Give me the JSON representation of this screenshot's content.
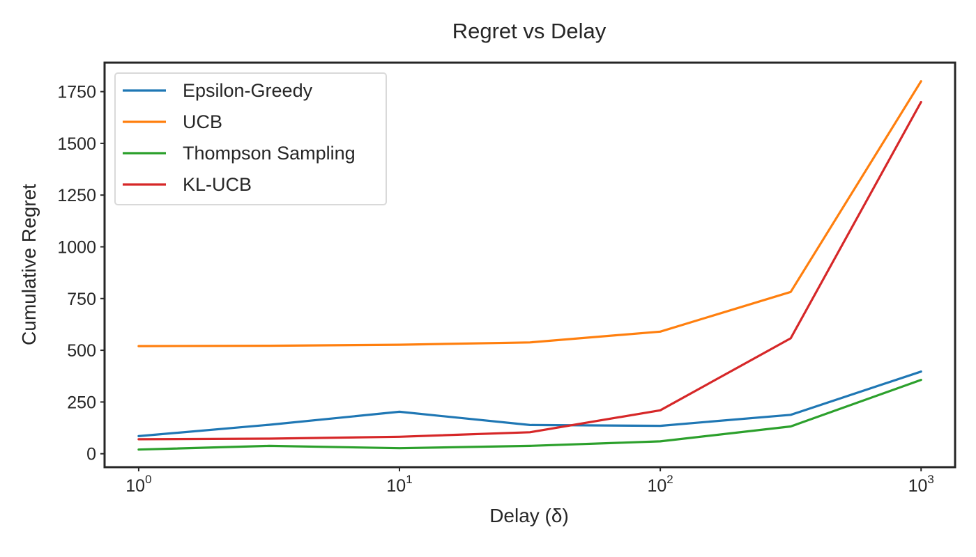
{
  "chart_data": {
    "type": "line",
    "title": "Regret vs Delay",
    "xlabel": "Delay (δ)",
    "ylabel": "Cumulative Regret",
    "xscale": "log",
    "x": [
      1,
      3.162,
      10,
      31.62,
      100,
      316.2,
      1000
    ],
    "xlim": [
      0.74,
      1350
    ],
    "ylim": [
      -65,
      1890
    ],
    "x_ticks": [
      {
        "value": 1,
        "base": "10",
        "exp": "0"
      },
      {
        "value": 10,
        "base": "10",
        "exp": "1"
      },
      {
        "value": 100,
        "base": "10",
        "exp": "2"
      },
      {
        "value": 1000,
        "base": "10",
        "exp": "3"
      }
    ],
    "y_ticks": [
      0,
      250,
      500,
      750,
      1000,
      1250,
      1500,
      1750
    ],
    "grid": false,
    "legend_position": "top-left",
    "series": [
      {
        "name": "Epsilon-Greedy",
        "color": "#1f77b4",
        "values": [
          85,
          140,
          203,
          139,
          135,
          188,
          397
        ]
      },
      {
        "name": "UCB",
        "color": "#ff7f0e",
        "values": [
          520,
          522,
          527,
          538,
          590,
          782,
          1800
        ]
      },
      {
        "name": "Thompson Sampling",
        "color": "#2ca02c",
        "values": [
          20,
          38,
          27,
          38,
          60,
          132,
          357
        ]
      },
      {
        "name": "KL-UCB",
        "color": "#d62728",
        "values": [
          70,
          73,
          82,
          104,
          210,
          558,
          1700
        ]
      }
    ]
  }
}
